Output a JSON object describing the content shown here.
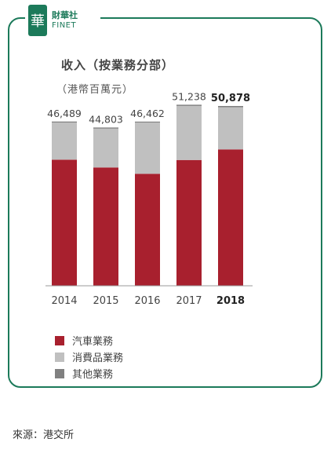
{
  "logo": {
    "mark": "華",
    "cn": "財華社",
    "en": "FINET",
    "color": "#1c7a5a"
  },
  "source": "來源：港交所",
  "chart_data": {
    "type": "bar",
    "stacked": true,
    "title": "收入（按業務分部）",
    "subtitle": "（港幣百萬元）",
    "categories": [
      "2014",
      "2015",
      "2016",
      "2017",
      "2018"
    ],
    "highlight_category": "2018",
    "totals": [
      "46,489",
      "44,803",
      "46,462",
      "51,238",
      "50,878"
    ],
    "total_values": [
      46489,
      44803,
      46462,
      51238,
      50878
    ],
    "series": [
      {
        "name": "汽車業務",
        "color": "#a8202e",
        "values": [
          35700,
          33500,
          31700,
          35600,
          38600
        ]
      },
      {
        "name": "消費品業務",
        "color": "#c0c0c0",
        "values": [
          10500,
          11000,
          14500,
          15300,
          11900
        ]
      },
      {
        "name": "其他業務",
        "color": "#808080",
        "values": [
          289,
          303,
          262,
          338,
          378
        ]
      }
    ],
    "ylim": [
      0,
      56000
    ],
    "legend_position": "bottom-left",
    "grid": false
  }
}
